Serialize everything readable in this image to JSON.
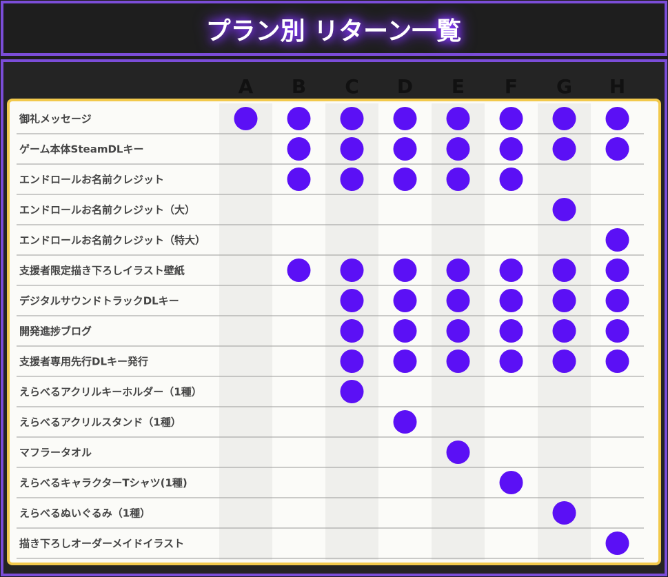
{
  "header": {
    "title": "プラン別 リターン一覧"
  },
  "table": {
    "columns": [
      "A",
      "B",
      "C",
      "D",
      "E",
      "F",
      "G",
      "H"
    ],
    "rows": [
      {
        "label": "御礼メッセージ",
        "plans": [
          true,
          true,
          true,
          true,
          true,
          true,
          true,
          true
        ]
      },
      {
        "label": "ゲーム本体SteamDLキー",
        "plans": [
          false,
          true,
          true,
          true,
          true,
          true,
          true,
          true
        ]
      },
      {
        "label": "エンドロールお名前クレジット",
        "plans": [
          false,
          true,
          true,
          true,
          true,
          true,
          false,
          false
        ]
      },
      {
        "label": "エンドロールお名前クレジット（大）",
        "plans": [
          false,
          false,
          false,
          false,
          false,
          false,
          true,
          false
        ]
      },
      {
        "label": "エンドロールお名前クレジット（特大）",
        "plans": [
          false,
          false,
          false,
          false,
          false,
          false,
          false,
          true
        ]
      },
      {
        "label": "支援者限定描き下ろしイラスト壁紙",
        "plans": [
          false,
          true,
          true,
          true,
          true,
          true,
          true,
          true
        ]
      },
      {
        "label": "デジタルサウンドトラックDLキー",
        "plans": [
          false,
          false,
          true,
          true,
          true,
          true,
          true,
          true
        ]
      },
      {
        "label": "開発進捗ブログ",
        "plans": [
          false,
          false,
          true,
          true,
          true,
          true,
          true,
          true
        ]
      },
      {
        "label": "支援者専用先行DLキー発行",
        "plans": [
          false,
          false,
          true,
          true,
          true,
          true,
          true,
          true
        ]
      },
      {
        "label": "えらべるアクリルキーホルダー（1種）",
        "plans": [
          false,
          false,
          true,
          false,
          false,
          false,
          false,
          false
        ]
      },
      {
        "label": "えらべるアクリルスタンド（1種）",
        "plans": [
          false,
          false,
          false,
          true,
          false,
          false,
          false,
          false
        ]
      },
      {
        "label": "マフラータオル",
        "plans": [
          false,
          false,
          false,
          false,
          true,
          false,
          false,
          false
        ]
      },
      {
        "label": "えらべるキャラクターTシャツ(1種)",
        "plans": [
          false,
          false,
          false,
          false,
          false,
          true,
          false,
          false
        ]
      },
      {
        "label": "えらべるぬいぐるみ（1種）",
        "plans": [
          false,
          false,
          false,
          false,
          false,
          false,
          true,
          false
        ]
      },
      {
        "label": "描き下ろしオーダーメイドイラスト",
        "plans": [
          false,
          false,
          false,
          false,
          false,
          false,
          false,
          true
        ]
      }
    ]
  }
}
